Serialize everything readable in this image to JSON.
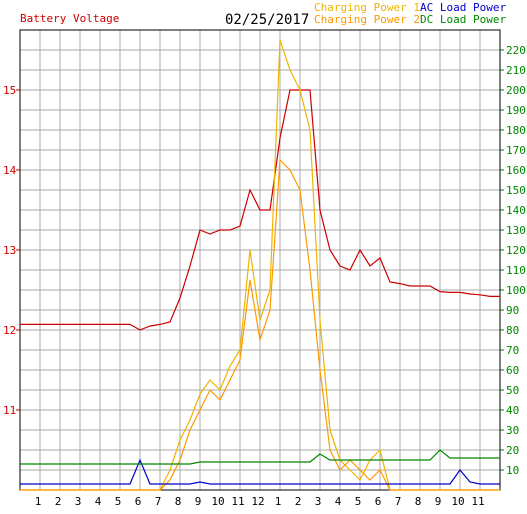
{
  "chart_data": {
    "type": "line",
    "title": "02/25/2017",
    "x": [
      0,
      0.5,
      1,
      1.5,
      2,
      2.5,
      3,
      3.5,
      4,
      4.5,
      5,
      5.5,
      6,
      6.5,
      7,
      7.5,
      8,
      8.5,
      9,
      9.5,
      10,
      10.5,
      11,
      11.5,
      12,
      12.5,
      13,
      13.5,
      14,
      14.5,
      15,
      15.5,
      16,
      16.5,
      17,
      17.5,
      18,
      18.5,
      19,
      19.5,
      20,
      20.5,
      21,
      21.5,
      22,
      22.5,
      23,
      23.5,
      24
    ],
    "xlim": [
      0,
      24
    ],
    "xticks": [
      1,
      2,
      3,
      4,
      5,
      6,
      7,
      8,
      9,
      10,
      11,
      12,
      {
        "value": 13,
        "label": "1"
      },
      {
        "value": 14,
        "label": "2"
      },
      {
        "value": 15,
        "label": "3"
      },
      {
        "value": 16,
        "label": "4"
      },
      {
        "value": 17,
        "label": "5"
      },
      {
        "value": 18,
        "label": "6"
      },
      {
        "value": 19,
        "label": "7"
      },
      {
        "value": 20,
        "label": "8"
      },
      {
        "value": 21,
        "label": "9"
      },
      {
        "value": 22,
        "label": "10"
      },
      {
        "value": 23,
        "label": "11"
      }
    ],
    "ylim": [
      10,
      15.75
    ],
    "yticks": [
      11,
      12,
      13,
      14,
      15
    ],
    "y2lim": [
      0,
      230
    ],
    "y2ticks": [
      10,
      20,
      30,
      40,
      50,
      60,
      70,
      80,
      90,
      100,
      110,
      120,
      130,
      140,
      150,
      160,
      170,
      180,
      190,
      200,
      210,
      220
    ],
    "grid": true,
    "series": [
      {
        "name": "Battery Voltage",
        "color": "#cc0000",
        "axis": "y",
        "values": [
          12.07,
          12.07,
          12.07,
          12.07,
          12.07,
          12.07,
          12.07,
          12.07,
          12.07,
          12.07,
          12.07,
          12.07,
          12.0,
          12.05,
          12.07,
          12.1,
          12.4,
          12.8,
          13.25,
          13.2,
          13.25,
          13.25,
          13.3,
          13.75,
          13.5,
          13.5,
          14.4,
          15.0,
          15.0,
          15.0,
          13.5,
          13.0,
          12.8,
          12.75,
          13.0,
          12.8,
          12.9,
          12.6,
          12.58,
          12.55,
          12.55,
          12.55,
          12.48,
          12.47,
          12.47,
          12.45,
          12.44,
          12.42,
          12.42
        ]
      },
      {
        "name": "Charging Power 1",
        "color": "#f0b400",
        "axis": "y2",
        "values": [
          0,
          0,
          0,
          0,
          0,
          0,
          0,
          0,
          0,
          0,
          0,
          0,
          0,
          0,
          0,
          10,
          25,
          35,
          48,
          55,
          50,
          62,
          70,
          120,
          85,
          100,
          225,
          210,
          200,
          180,
          85,
          30,
          15,
          10,
          5,
          15,
          20,
          0,
          0,
          0,
          0,
          0,
          0,
          0,
          0,
          0,
          0,
          0,
          0
        ]
      },
      {
        "name": "Charging Power 2",
        "color": "#ff9900",
        "axis": "y2",
        "values": [
          0,
          0,
          0,
          0,
          0,
          0,
          0,
          0,
          0,
          0,
          0,
          0,
          0,
          0,
          0,
          5,
          15,
          30,
          40,
          50,
          45,
          55,
          65,
          105,
          75,
          90,
          165,
          160,
          150,
          110,
          60,
          20,
          10,
          15,
          10,
          5,
          10,
          0,
          0,
          0,
          0,
          0,
          0,
          0,
          0,
          0,
          0,
          0,
          0
        ]
      },
      {
        "name": "AC Load Power",
        "color": "#0000cc",
        "axis": "y2",
        "values": [
          3,
          3,
          3,
          3,
          3,
          3,
          3,
          3,
          3,
          3,
          3,
          3,
          15,
          3,
          3,
          3,
          3,
          3,
          4,
          3,
          3,
          3,
          3,
          3,
          3,
          3,
          3,
          3,
          3,
          3,
          3,
          3,
          3,
          3,
          3,
          3,
          3,
          3,
          3,
          3,
          3,
          3,
          3,
          3,
          10,
          4,
          3,
          3,
          3
        ]
      },
      {
        "name": "DC Load Power",
        "color": "#008800",
        "axis": "y2",
        "values": [
          13,
          13,
          13,
          13,
          13,
          13,
          13,
          13,
          13,
          13,
          13,
          13,
          13,
          13,
          13,
          13,
          13,
          13,
          14,
          14,
          14,
          14,
          14,
          14,
          14,
          14,
          14,
          14,
          14,
          14,
          18,
          15,
          15,
          15,
          15,
          15,
          15,
          15,
          15,
          15,
          15,
          15,
          20,
          16,
          16,
          16,
          16,
          16,
          16
        ]
      }
    ]
  }
}
